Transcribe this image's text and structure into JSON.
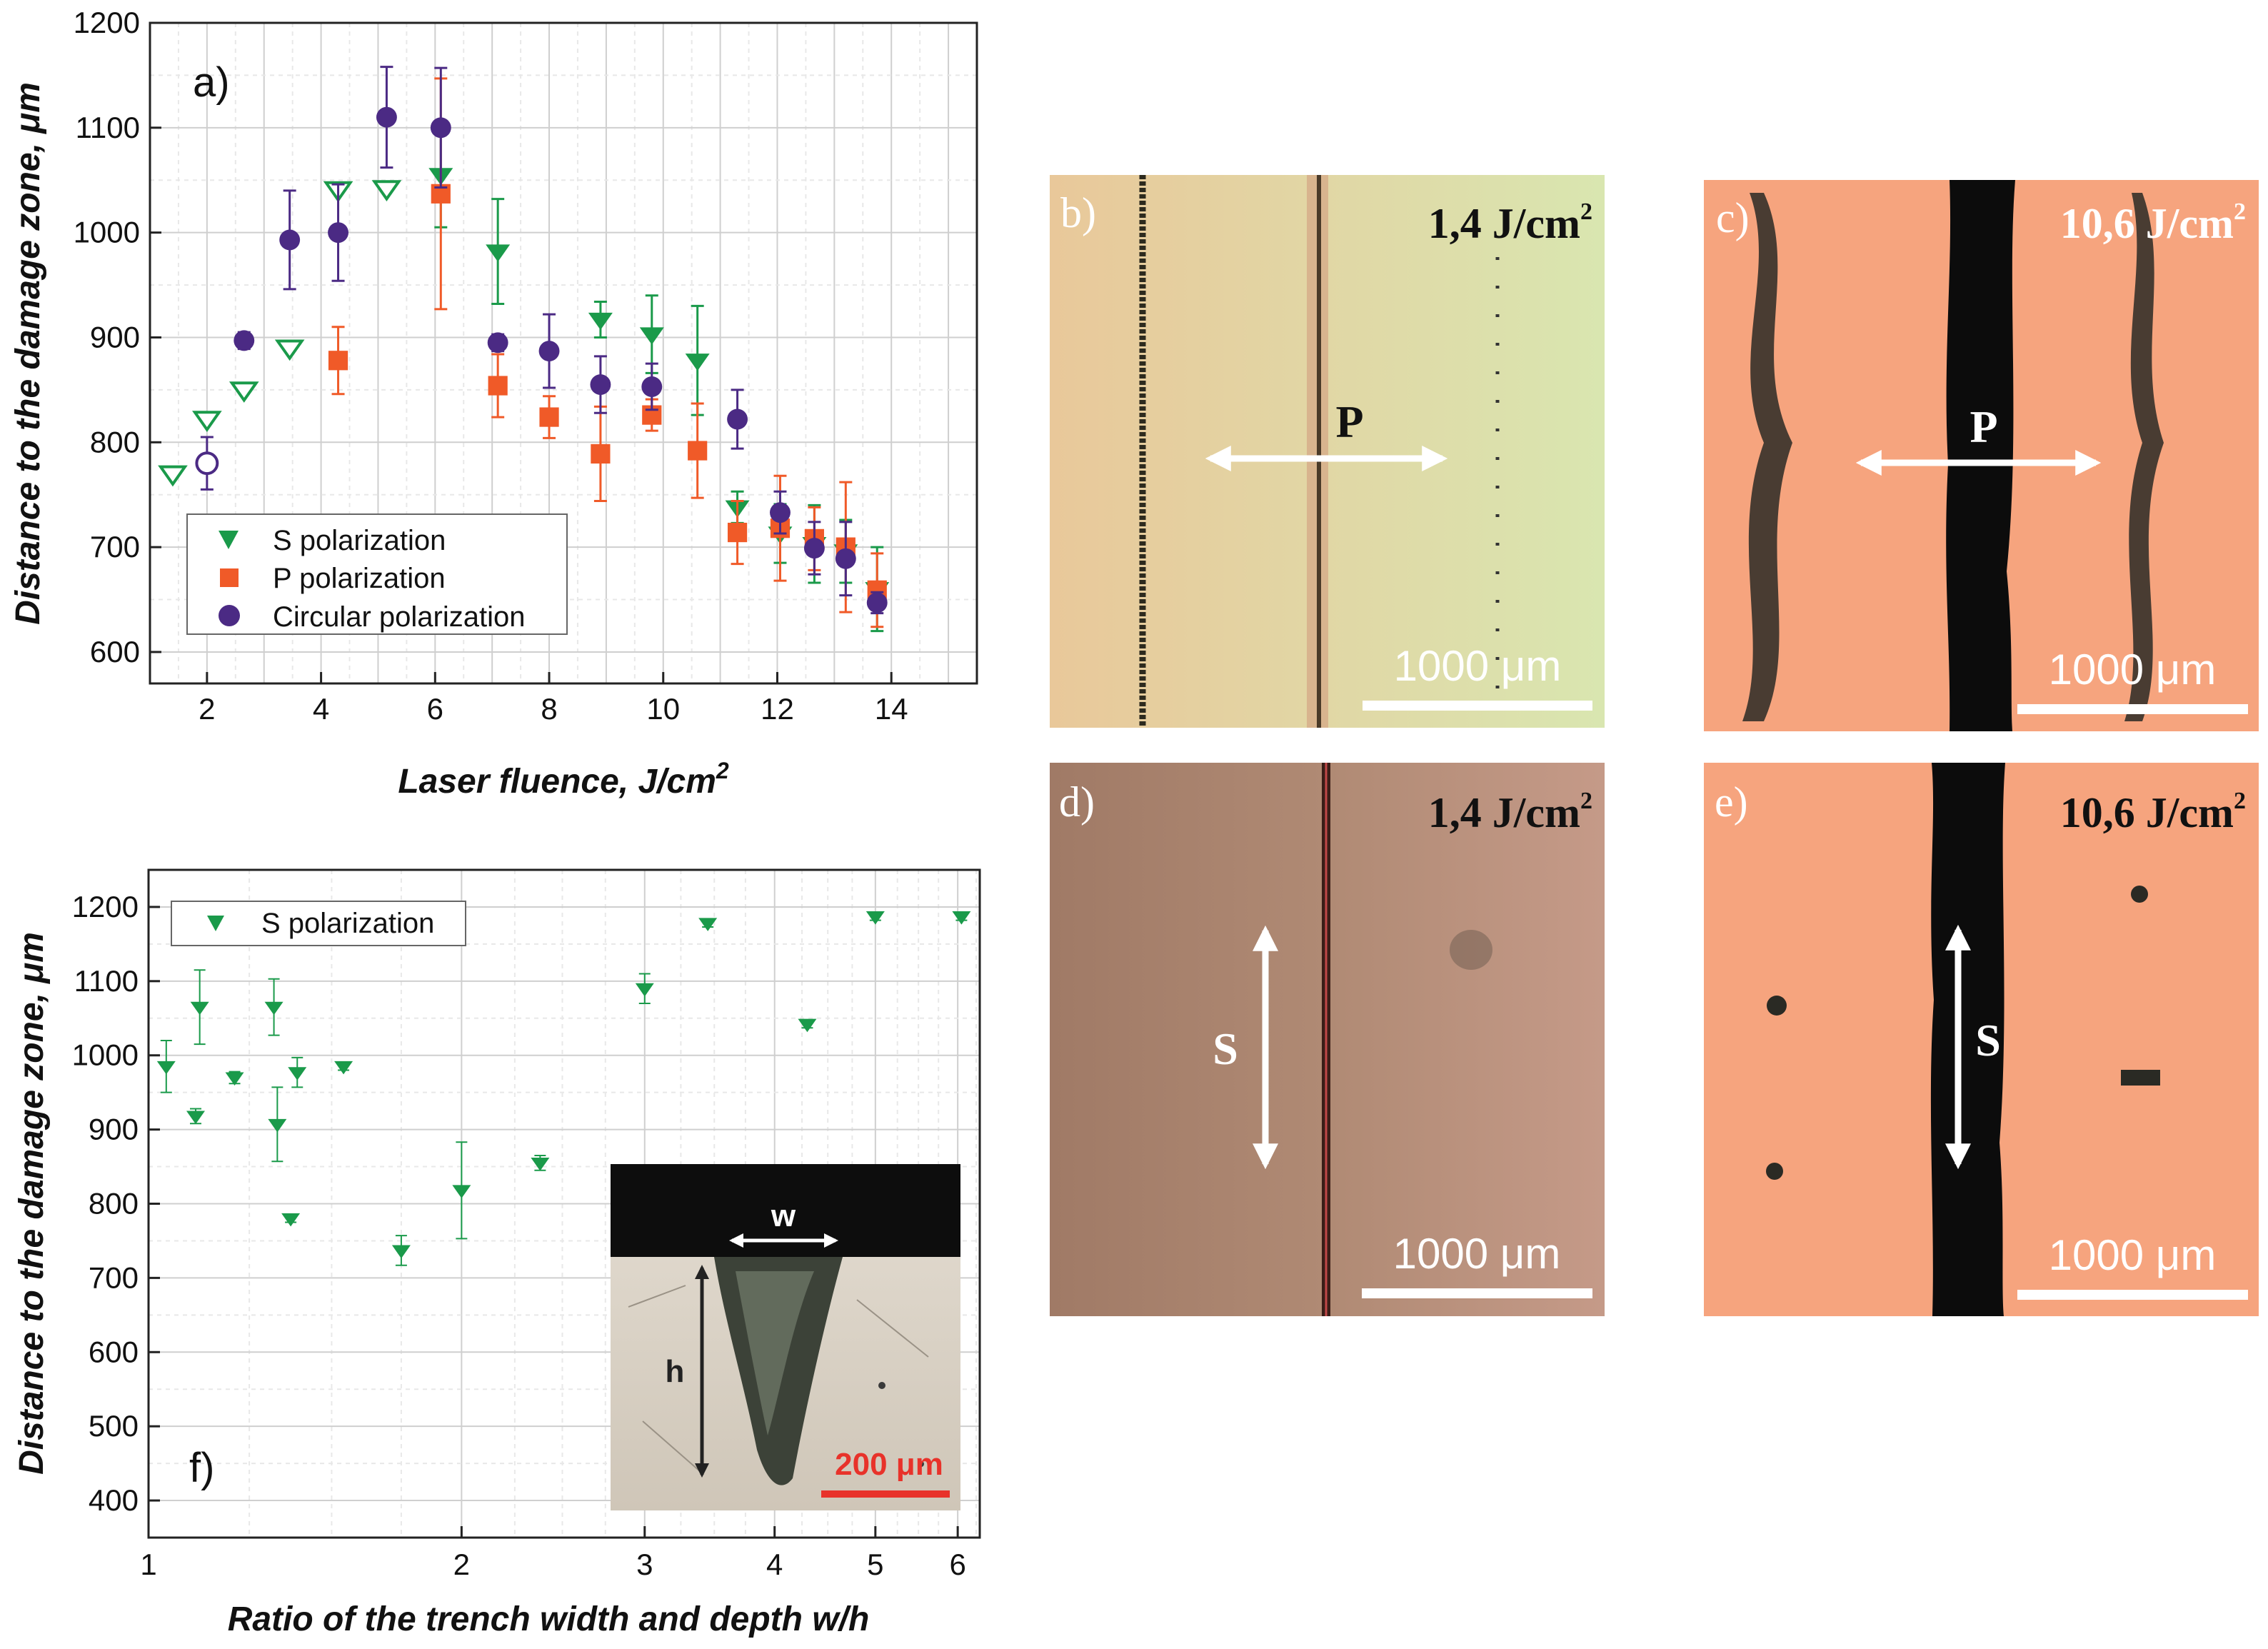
{
  "chart_data": [
    {
      "type": "scatter",
      "panel_label": "a)",
      "xlabel": "Laser fluence, J/cm",
      "xlabel_sup": "2",
      "ylabel": "Distance to the damage zone, μm",
      "xlim": [
        1,
        15.5
      ],
      "ylim": [
        570,
        1200
      ],
      "xticks": [
        2,
        4,
        6,
        8,
        10,
        12,
        14
      ],
      "yticks": [
        600,
        700,
        800,
        900,
        1000,
        1100,
        1200
      ],
      "grid": true,
      "legend_placement": "lower-left",
      "series": [
        {
          "name": "S polarization",
          "color": "#1a9a4a",
          "marker": "triangle-down",
          "points": [
            {
              "x": 1.4,
              "y": 770,
              "open": true
            },
            {
              "x": 2.0,
              "y": 822,
              "open": true
            },
            {
              "x": 2.65,
              "y": 850,
              "open": true
            },
            {
              "x": 3.45,
              "y": 890,
              "open": true
            },
            {
              "x": 4.3,
              "y": 1041,
              "open": true
            },
            {
              "x": 5.15,
              "y": 1042,
              "open": true
            },
            {
              "x": 6.1,
              "y": 1055,
              "err": 50
            },
            {
              "x": 7.1,
              "y": 982,
              "err": 50
            },
            {
              "x": 8.9,
              "y": 917,
              "err": 17
            },
            {
              "x": 9.8,
              "y": 903,
              "err": 37
            },
            {
              "x": 10.6,
              "y": 878,
              "err": 52
            },
            {
              "x": 11.3,
              "y": 738,
              "err": 15
            },
            {
              "x": 12.05,
              "y": 713,
              "err": 28
            },
            {
              "x": 12.65,
              "y": 703,
              "err": 37
            },
            {
              "x": 13.2,
              "y": 696,
              "err": 30
            },
            {
              "x": 13.75,
              "y": 660,
              "err": 40
            }
          ]
        },
        {
          "name": "P polarization",
          "color": "#f05a28",
          "marker": "square",
          "points": [
            {
              "x": 4.3,
              "y": 878,
              "err": 32
            },
            {
              "x": 6.1,
              "y": 1037,
              "err": 110
            },
            {
              "x": 7.1,
              "y": 854,
              "err": 30
            },
            {
              "x": 8.0,
              "y": 824,
              "err": 20
            },
            {
              "x": 8.9,
              "y": 789,
              "err": 45
            },
            {
              "x": 9.8,
              "y": 826,
              "err": 15
            },
            {
              "x": 10.6,
              "y": 792,
              "err": 45
            },
            {
              "x": 11.3,
              "y": 714,
              "err": 30
            },
            {
              "x": 12.05,
              "y": 718,
              "err": 50
            },
            {
              "x": 12.65,
              "y": 708,
              "err": 30
            },
            {
              "x": 13.2,
              "y": 700,
              "err": 62
            },
            {
              "x": 13.75,
              "y": 659,
              "err": 35
            }
          ]
        },
        {
          "name": "Circular polarization",
          "color": "#4b2a84",
          "marker": "circle",
          "points": [
            {
              "x": 2.0,
              "y": 780,
              "err": 25,
              "open": true
            },
            {
              "x": 2.65,
              "y": 897,
              "err": 8
            },
            {
              "x": 3.45,
              "y": 993,
              "err": 47
            },
            {
              "x": 4.3,
              "y": 1000,
              "err": 46
            },
            {
              "x": 5.15,
              "y": 1110,
              "err": 48
            },
            {
              "x": 6.1,
              "y": 1100,
              "err": 57
            },
            {
              "x": 7.1,
              "y": 895,
              "err": 8
            },
            {
              "x": 8.0,
              "y": 887,
              "err": 35
            },
            {
              "x": 8.9,
              "y": 855,
              "err": 27
            },
            {
              "x": 9.8,
              "y": 853,
              "err": 22
            },
            {
              "x": 11.3,
              "y": 822,
              "err": 28
            },
            {
              "x": 12.05,
              "y": 733,
              "err": 20
            },
            {
              "x": 12.65,
              "y": 699,
              "err": 25
            },
            {
              "x": 13.2,
              "y": 689,
              "err": 35
            },
            {
              "x": 13.75,
              "y": 647,
              "err": 10
            }
          ]
        }
      ]
    },
    {
      "type": "scatter",
      "panel_label": "f)",
      "xlabel": "Ratio of the trench width and depth w/h",
      "ylabel": "Distance to the damage zone, μm",
      "xscale": "log",
      "xlim": [
        1,
        6.3
      ],
      "ylim": [
        350,
        1250
      ],
      "xticks": [
        1,
        2,
        3,
        4,
        5,
        6
      ],
      "yticks": [
        400,
        500,
        600,
        700,
        800,
        900,
        1000,
        1100,
        1200
      ],
      "grid": true,
      "legend_placement": "top-left",
      "series": [
        {
          "name": "S polarization",
          "color": "#1a9a4a",
          "marker": "triangle-down",
          "points": [
            {
              "x": 1.04,
              "y": 985,
              "err": 35
            },
            {
              "x": 1.11,
              "y": 918,
              "err": 10
            },
            {
              "x": 1.12,
              "y": 1065,
              "err": 50
            },
            {
              "x": 1.21,
              "y": 970,
              "err": 8
            },
            {
              "x": 1.32,
              "y": 1065,
              "err": 38
            },
            {
              "x": 1.33,
              "y": 907,
              "err": 50
            },
            {
              "x": 1.37,
              "y": 780,
              "err": 5
            },
            {
              "x": 1.39,
              "y": 977,
              "err": 20
            },
            {
              "x": 1.54,
              "y": 985,
              "err": 5
            },
            {
              "x": 1.75,
              "y": 737,
              "err": 20
            },
            {
              "x": 2.0,
              "y": 818,
              "err": 65
            },
            {
              "x": 2.38,
              "y": 855,
              "err": 10
            },
            {
              "x": 3.0,
              "y": 1090,
              "err": 20
            },
            {
              "x": 3.45,
              "y": 1178,
              "err": 5
            },
            {
              "x": 4.3,
              "y": 1042,
              "err": 5
            },
            {
              "x": 5.0,
              "y": 1187,
              "err": 5
            },
            {
              "x": 6.05,
              "y": 1187,
              "err": 5
            }
          ]
        }
      ],
      "inset": {
        "w_label": "w",
        "h_label": "h",
        "scale_bar": "200 μm"
      }
    }
  ],
  "micrographs": [
    {
      "label": "b)",
      "fluence": "1,4 J/cm",
      "sup": "2",
      "arrow_label": "P",
      "scale_bar": "1000 μm"
    },
    {
      "label": "c)",
      "fluence": "10,6 J/cm",
      "sup": "2",
      "arrow_label": "P",
      "scale_bar": "1000 μm"
    },
    {
      "label": "d)",
      "fluence": "1,4 J/cm",
      "sup": "2",
      "arrow_label": "S",
      "scale_bar": "1000 μm"
    },
    {
      "label": "e)",
      "fluence": "10,6 J/cm",
      "sup": "2",
      "arrow_label": "S",
      "scale_bar": "1000 μm"
    }
  ]
}
